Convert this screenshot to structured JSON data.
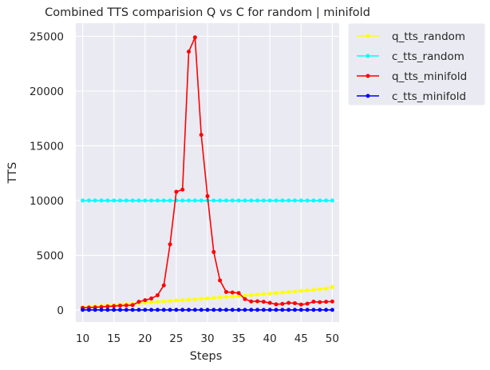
{
  "chart_data": {
    "type": "line",
    "title": "Combined TTS comparision Q vs C for random | minifold",
    "xlabel": "Steps",
    "ylabel": "TTS",
    "xlim": [
      8.9,
      51.1
    ],
    "ylim": [
      -1100,
      26200
    ],
    "x_ticks": [
      10,
      15,
      20,
      25,
      30,
      35,
      40,
      45,
      50
    ],
    "y_ticks": [
      0,
      5000,
      10000,
      15000,
      20000,
      25000
    ],
    "grid": true,
    "legend_position": "outside upper-right",
    "x": [
      10,
      11,
      12,
      13,
      14,
      15,
      16,
      17,
      18,
      19,
      20,
      21,
      22,
      23,
      24,
      25,
      26,
      27,
      28,
      29,
      30,
      31,
      32,
      33,
      34,
      35,
      36,
      37,
      38,
      39,
      40,
      41,
      42,
      43,
      44,
      45,
      46,
      47,
      48,
      49,
      50
    ],
    "series": [
      {
        "name": "q_tts_random",
        "color": "#ffff00",
        "values": [
          250,
          300,
          350,
          380,
          420,
          460,
          500,
          540,
          580,
          620,
          670,
          710,
          750,
          790,
          830,
          870,
          900,
          940,
          980,
          1020,
          1060,
          1100,
          1150,
          1190,
          1230,
          1270,
          1320,
          1360,
          1410,
          1450,
          1500,
          1550,
          1600,
          1640,
          1690,
          1740,
          1790,
          1840,
          1900,
          1960,
          2100
        ]
      },
      {
        "name": "c_tts_random",
        "color": "#00ffff",
        "values": [
          10000,
          10000,
          10000,
          10000,
          10000,
          10000,
          10000,
          10000,
          10000,
          10000,
          10000,
          10000,
          10000,
          10000,
          10000,
          10000,
          10000,
          10000,
          10000,
          10000,
          10000,
          10000,
          10000,
          10000,
          10000,
          10000,
          10000,
          10000,
          10000,
          10000,
          10000,
          10000,
          10000,
          10000,
          10000,
          10000,
          10000,
          10000,
          10000,
          10000,
          10000
        ]
      },
      {
        "name": "q_tts_minifold",
        "color": "#ff0000",
        "values": [
          200,
          220,
          250,
          280,
          320,
          360,
          400,
          420,
          450,
          750,
          900,
          1050,
          1350,
          2250,
          6000,
          10800,
          11000,
          23600,
          24900,
          16000,
          10400,
          5300,
          2700,
          1650,
          1600,
          1550,
          1000,
          780,
          800,
          750,
          650,
          520,
          560,
          650,
          620,
          500,
          580,
          760,
          720,
          750,
          780
        ]
      },
      {
        "name": "c_tts_minifold",
        "color": "#0000ff",
        "values": [
          10,
          10,
          10,
          10,
          10,
          10,
          10,
          10,
          10,
          10,
          10,
          10,
          10,
          10,
          10,
          10,
          10,
          10,
          10,
          10,
          10,
          10,
          10,
          10,
          10,
          10,
          10,
          10,
          10,
          10,
          10,
          10,
          10,
          10,
          10,
          10,
          10,
          10,
          10,
          10,
          10
        ]
      }
    ]
  }
}
